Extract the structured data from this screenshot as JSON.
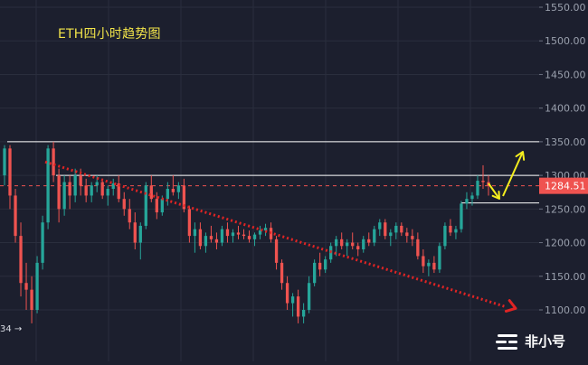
{
  "chart_data": {
    "type": "candlestick",
    "title": "ETH四小时趋势图",
    "y_ticks": [
      1100,
      1150,
      1200,
      1250,
      1300,
      1350,
      1400,
      1450,
      1500,
      1550
    ],
    "y_tick_labels": [
      "1100.00",
      "1150.00",
      "1200.00",
      "1250.00",
      "1300.00",
      "1350.00",
      "1400.00",
      "1450.00",
      "1500.00",
      "1550.00"
    ],
    "ylim": [
      1065,
      1560
    ],
    "current_price": 1284.51,
    "current_price_label": "1284.51",
    "first_visible_label": "34",
    "horizontal_levels": [
      1350,
      1300,
      1259
    ],
    "trendline": {
      "from": 1320,
      "to": 1105
    },
    "grid": true,
    "colors": {
      "up": "#26a69a",
      "down": "#ef5350",
      "background": "#1c1f2e",
      "grid": "#2a2e3d",
      "trendline": "#e02424",
      "projection": "#f4ee1e",
      "level": "#ffffff"
    },
    "ohlc": [
      [
        1300,
        1345,
        1285,
        1340
      ],
      [
        1340,
        1345,
        1250,
        1270
      ],
      [
        1270,
        1280,
        1200,
        1210
      ],
      [
        1210,
        1230,
        1120,
        1140
      ],
      [
        1140,
        1170,
        1100,
        1130
      ],
      [
        1130,
        1150,
        1080,
        1100
      ],
      [
        1100,
        1180,
        1095,
        1170
      ],
      [
        1170,
        1240,
        1160,
        1230
      ],
      [
        1230,
        1345,
        1220,
        1340
      ],
      [
        1340,
        1350,
        1290,
        1300
      ],
      [
        1300,
        1310,
        1230,
        1250
      ],
      [
        1250,
        1300,
        1240,
        1290
      ],
      [
        1290,
        1300,
        1250,
        1270
      ],
      [
        1270,
        1310,
        1260,
        1300
      ],
      [
        1300,
        1310,
        1270,
        1285
      ],
      [
        1285,
        1295,
        1260,
        1270
      ],
      [
        1270,
        1290,
        1260,
        1285
      ],
      [
        1285,
        1300,
        1275,
        1290
      ],
      [
        1290,
        1295,
        1265,
        1270
      ],
      [
        1270,
        1285,
        1255,
        1280
      ],
      [
        1280,
        1295,
        1270,
        1288
      ],
      [
        1288,
        1300,
        1260,
        1265
      ],
      [
        1265,
        1275,
        1240,
        1250
      ],
      [
        1250,
        1265,
        1220,
        1230
      ],
      [
        1230,
        1245,
        1190,
        1200
      ],
      [
        1200,
        1230,
        1175,
        1225
      ],
      [
        1225,
        1290,
        1220,
        1285
      ],
      [
        1285,
        1300,
        1260,
        1265
      ],
      [
        1265,
        1275,
        1235,
        1245
      ],
      [
        1245,
        1270,
        1240,
        1265
      ],
      [
        1265,
        1290,
        1255,
        1280
      ],
      [
        1280,
        1300,
        1270,
        1275
      ],
      [
        1275,
        1290,
        1265,
        1285
      ],
      [
        1285,
        1295,
        1245,
        1250
      ],
      [
        1250,
        1255,
        1200,
        1210
      ],
      [
        1210,
        1230,
        1185,
        1220
      ],
      [
        1220,
        1230,
        1190,
        1195
      ],
      [
        1195,
        1215,
        1185,
        1210
      ],
      [
        1210,
        1225,
        1200,
        1205
      ],
      [
        1205,
        1215,
        1190,
        1200
      ],
      [
        1200,
        1225,
        1195,
        1220
      ],
      [
        1220,
        1230,
        1200,
        1210
      ],
      [
        1210,
        1220,
        1200,
        1215
      ],
      [
        1215,
        1225,
        1205,
        1212
      ],
      [
        1212,
        1220,
        1205,
        1210
      ],
      [
        1210,
        1218,
        1200,
        1205
      ],
      [
        1205,
        1215,
        1195,
        1212
      ],
      [
        1212,
        1225,
        1205,
        1218
      ],
      [
        1218,
        1228,
        1210,
        1222
      ],
      [
        1222,
        1230,
        1200,
        1205
      ],
      [
        1205,
        1210,
        1160,
        1170
      ],
      [
        1170,
        1175,
        1130,
        1140
      ],
      [
        1140,
        1150,
        1100,
        1110
      ],
      [
        1110,
        1125,
        1090,
        1120
      ],
      [
        1120,
        1130,
        1080,
        1090
      ],
      [
        1090,
        1110,
        1080,
        1100
      ],
      [
        1100,
        1150,
        1095,
        1140
      ],
      [
        1140,
        1175,
        1135,
        1170
      ],
      [
        1170,
        1185,
        1150,
        1160
      ],
      [
        1160,
        1180,
        1155,
        1175
      ],
      [
        1175,
        1200,
        1170,
        1195
      ],
      [
        1195,
        1210,
        1180,
        1205
      ],
      [
        1205,
        1215,
        1190,
        1195
      ],
      [
        1195,
        1205,
        1180,
        1200
      ],
      [
        1200,
        1215,
        1190,
        1195
      ],
      [
        1195,
        1200,
        1180,
        1190
      ],
      [
        1190,
        1210,
        1185,
        1205
      ],
      [
        1205,
        1215,
        1195,
        1200
      ],
      [
        1200,
        1225,
        1195,
        1220
      ],
      [
        1220,
        1235,
        1210,
        1230
      ],
      [
        1230,
        1235,
        1205,
        1210
      ],
      [
        1210,
        1220,
        1195,
        1215
      ],
      [
        1215,
        1230,
        1205,
        1225
      ],
      [
        1225,
        1230,
        1210,
        1215
      ],
      [
        1215,
        1222,
        1200,
        1210
      ],
      [
        1210,
        1220,
        1195,
        1205
      ],
      [
        1205,
        1215,
        1175,
        1180
      ],
      [
        1180,
        1190,
        1155,
        1165
      ],
      [
        1165,
        1175,
        1150,
        1170
      ],
      [
        1170,
        1180,
        1155,
        1160
      ],
      [
        1160,
        1200,
        1155,
        1195
      ],
      [
        1195,
        1230,
        1190,
        1225
      ],
      [
        1225,
        1235,
        1210,
        1215
      ],
      [
        1215,
        1225,
        1205,
        1220
      ],
      [
        1220,
        1262,
        1215,
        1258
      ],
      [
        1258,
        1275,
        1250,
        1265
      ],
      [
        1265,
        1275,
        1255,
        1270
      ],
      [
        1270,
        1300,
        1265,
        1292
      ],
      [
        1292,
        1315,
        1280,
        1290
      ],
      [
        1290,
        1300,
        1270,
        1285
      ]
    ]
  }
}
